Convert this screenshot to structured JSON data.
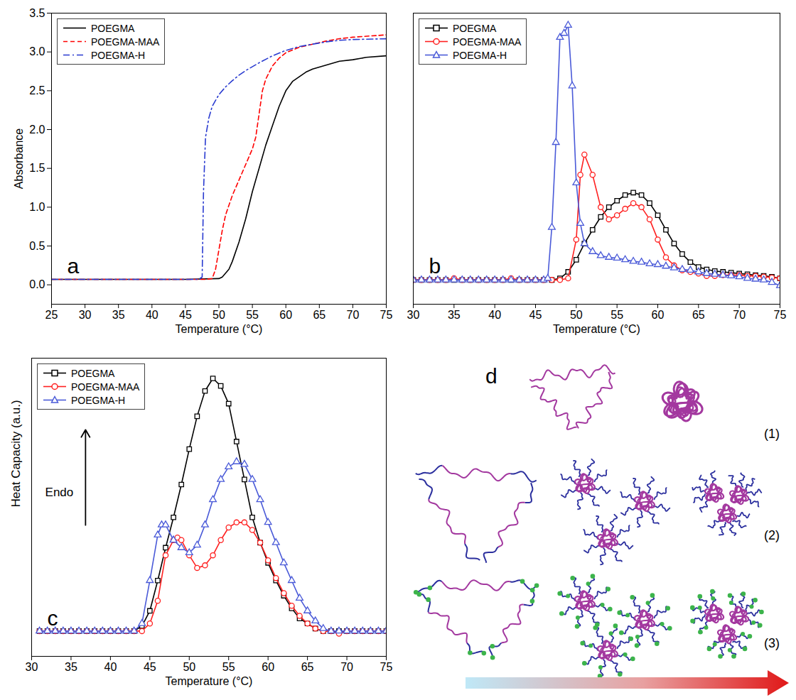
{
  "chart_data": [
    {
      "type": "line",
      "annotations": [
        "a"
      ],
      "x_label": "Temperature (°C)",
      "y_label": "Absorbance",
      "xlim": [
        25,
        75
      ],
      "xticks": [
        25,
        30,
        35,
        40,
        45,
        50,
        55,
        60,
        65,
        70,
        75
      ],
      "ylim": [
        -0.25,
        3.5
      ],
      "yticks": [
        {
          "value": 0,
          "label": "0.0"
        },
        0.5,
        {
          "value": 1,
          "label": "1.0"
        },
        1.5,
        {
          "value": 2,
          "label": "2.0"
        },
        2.5,
        {
          "value": 3,
          "label": "3.0"
        },
        3.5
      ],
      "legend": "top-left",
      "series": [
        {
          "name": "POEGMA",
          "color": "#000000",
          "line_style": "solid",
          "x": [
            25,
            30,
            35,
            40,
            45,
            50,
            50.5,
            51,
            51.5,
            52,
            53,
            54,
            55,
            56,
            57,
            58,
            59,
            60,
            61,
            62,
            63,
            64,
            66,
            68,
            70,
            72,
            75
          ],
          "values": [
            0.07,
            0.07,
            0.07,
            0.07,
            0.07,
            0.08,
            0.1,
            0.15,
            0.2,
            0.3,
            0.55,
            0.85,
            1.2,
            1.5,
            1.8,
            2.05,
            2.3,
            2.5,
            2.62,
            2.68,
            2.74,
            2.78,
            2.83,
            2.88,
            2.9,
            2.93,
            2.95
          ]
        },
        {
          "name": "POEGMA-MAA",
          "color": "#ff0000",
          "line_style": "dashed",
          "x": [
            25,
            30,
            35,
            40,
            45,
            48,
            49,
            49.5,
            50,
            50.5,
            51,
            52,
            53,
            54,
            55,
            55.5,
            56,
            56.5,
            57,
            58,
            59,
            60,
            62,
            64,
            66,
            68,
            70,
            75
          ],
          "values": [
            0.07,
            0.07,
            0.07,
            0.07,
            0.07,
            0.07,
            0.08,
            0.2,
            0.45,
            0.7,
            0.9,
            1.15,
            1.35,
            1.55,
            1.75,
            1.9,
            2.2,
            2.5,
            2.65,
            2.82,
            2.92,
            2.99,
            3.06,
            3.1,
            3.14,
            3.17,
            3.19,
            3.22
          ]
        },
        {
          "name": "POEGMA-H",
          "color": "#2a3bd0",
          "line_style": "dashdot",
          "x": [
            25,
            30,
            35,
            40,
            45,
            47,
            47.5,
            47.7,
            48,
            48.5,
            49,
            50,
            51,
            52,
            53,
            54,
            56,
            58,
            60,
            62,
            64,
            66,
            68,
            70,
            75
          ],
          "values": [
            0.07,
            0.07,
            0.07,
            0.07,
            0.07,
            0.07,
            0.1,
            1.2,
            1.9,
            2.15,
            2.3,
            2.45,
            2.55,
            2.63,
            2.7,
            2.76,
            2.86,
            2.95,
            3.02,
            3.07,
            3.1,
            3.13,
            3.15,
            3.16,
            3.17
          ]
        }
      ]
    },
    {
      "type": "line",
      "annotations": [
        "b"
      ],
      "x_label": "Temperature (°C)",
      "xlim": [
        30,
        75
      ],
      "xticks": [
        30,
        35,
        40,
        45,
        50,
        55,
        60,
        65,
        70,
        75
      ],
      "ylim": [
        -0.2,
        3.4
      ],
      "tick_labels": "x",
      "legend": "top-left",
      "series": [
        {
          "name": "POEGMA",
          "color": "#000000",
          "line_style": "solid",
          "marker": "square",
          "x": [
            30,
            31,
            32,
            33,
            34,
            35,
            36,
            37,
            38,
            39,
            40,
            41,
            42,
            43,
            44,
            45,
            46,
            47,
            48,
            49,
            50,
            51,
            52,
            53,
            54,
            55,
            56,
            57,
            58,
            59,
            60,
            61,
            62,
            63,
            64,
            65,
            66,
            67,
            68,
            69,
            70,
            71,
            72,
            73,
            74,
            75
          ],
          "values": [
            0.1,
            0.1,
            0.1,
            0.1,
            0.1,
            0.1,
            0.1,
            0.1,
            0.1,
            0.1,
            0.1,
            0.1,
            0.1,
            0.1,
            0.1,
            0.1,
            0.1,
            0.1,
            0.12,
            0.2,
            0.35,
            0.55,
            0.72,
            0.88,
            1.0,
            1.08,
            1.15,
            1.18,
            1.15,
            1.05,
            0.9,
            0.72,
            0.55,
            0.42,
            0.32,
            0.26,
            0.23,
            0.21,
            0.2,
            0.19,
            0.18,
            0.17,
            0.16,
            0.15,
            0.14,
            0.12
          ]
        },
        {
          "name": "POEGMA-MAA",
          "color": "#ff2020",
          "line_style": "solid",
          "marker": "circle",
          "x": [
            30,
            31,
            32,
            33,
            34,
            35,
            36,
            37,
            38,
            39,
            40,
            41,
            42,
            43,
            44,
            45,
            46,
            47,
            48,
            49,
            50,
            50.5,
            51,
            52,
            53,
            54,
            55,
            56,
            57,
            58,
            59,
            60,
            61,
            62,
            63,
            64,
            65,
            66,
            67,
            68,
            69,
            70,
            71,
            72,
            73,
            74,
            75
          ],
          "values": [
            0.1,
            0.1,
            0.1,
            0.1,
            0.1,
            0.12,
            0.1,
            0.1,
            0.1,
            0.1,
            0.1,
            0.1,
            0.12,
            0.1,
            0.1,
            0.1,
            0.1,
            0.1,
            0.1,
            0.12,
            0.6,
            1.4,
            1.65,
            1.4,
            1.0,
            0.85,
            0.9,
            0.98,
            1.05,
            1.0,
            0.85,
            0.6,
            0.38,
            0.28,
            0.22,
            0.2,
            0.18,
            0.15,
            0.15,
            0.16,
            0.16,
            0.16,
            0.15,
            0.15,
            0.14,
            0.13,
            0.12
          ]
        },
        {
          "name": "POEGMA-H",
          "color": "#4a5ad8",
          "line_style": "solid",
          "marker": "triangle",
          "x": [
            30,
            31,
            32,
            33,
            34,
            35,
            36,
            37,
            38,
            39,
            40,
            41,
            42,
            43,
            44,
            45,
            46,
            46.5,
            47,
            47.5,
            48,
            48.5,
            49,
            49.5,
            50,
            50.5,
            51,
            52,
            53,
            54,
            55,
            56,
            57,
            58,
            59,
            60,
            61,
            62,
            63,
            64,
            65,
            66,
            67,
            68,
            69,
            70,
            71,
            72,
            73,
            74,
            75
          ],
          "values": [
            0.1,
            0.1,
            0.1,
            0.1,
            0.1,
            0.1,
            0.1,
            0.1,
            0.1,
            0.1,
            0.1,
            0.1,
            0.1,
            0.1,
            0.1,
            0.1,
            0.1,
            0.12,
            0.75,
            1.8,
            3.1,
            3.15,
            3.25,
            2.5,
            1.3,
            0.8,
            0.55,
            0.45,
            0.4,
            0.38,
            0.37,
            0.35,
            0.33,
            0.32,
            0.3,
            0.29,
            0.27,
            0.25,
            0.23,
            0.22,
            0.2,
            0.18,
            0.17,
            0.16,
            0.15,
            0.14,
            0.12,
            0.11,
            0.1,
            0.07,
            0.03
          ]
        }
      ]
    },
    {
      "type": "line",
      "annotations": [
        "c",
        "Endo"
      ],
      "x_label": "Temperature (°C)",
      "y_label": "Heat Capacity (a.u.)",
      "xlim": [
        30,
        75
      ],
      "xticks": [
        30,
        35,
        40,
        45,
        50,
        55,
        60,
        65,
        70,
        75
      ],
      "ylim": [
        -0.1,
        1.08
      ],
      "tick_labels": "x",
      "legend": "top-left",
      "series": [
        {
          "name": "POEGMA",
          "color": "#000000",
          "line_style": "solid",
          "marker": "square",
          "x": [
            31,
            32,
            33,
            34,
            35,
            36,
            37,
            38,
            39,
            40,
            41,
            42,
            43,
            44,
            45,
            46,
            47,
            48,
            49,
            50,
            51,
            52,
            53,
            54,
            55,
            56,
            57,
            58,
            59,
            60,
            61,
            62,
            63,
            64,
            65,
            66,
            67,
            68,
            69,
            70,
            71,
            72,
            73,
            74,
            75
          ],
          "values": [
            0,
            0,
            0,
            0,
            0,
            0,
            0,
            0,
            0,
            0,
            0,
            0,
            0,
            0.02,
            0.08,
            0.2,
            0.33,
            0.45,
            0.58,
            0.72,
            0.85,
            0.95,
            1.0,
            0.97,
            0.9,
            0.75,
            0.6,
            0.45,
            0.35,
            0.27,
            0.2,
            0.14,
            0.09,
            0.05,
            0.03,
            0.01,
            0,
            0,
            0,
            0,
            0,
            0,
            0,
            0,
            0
          ]
        },
        {
          "name": "POEGMA-MAA",
          "color": "#ff2020",
          "line_style": "solid",
          "marker": "circle",
          "x": [
            31,
            32,
            33,
            34,
            35,
            36,
            37,
            38,
            39,
            40,
            41,
            42,
            43,
            44,
            45,
            46,
            47,
            48,
            48.5,
            49,
            50,
            51,
            52,
            53,
            54,
            55,
            56,
            57,
            58,
            59,
            60,
            61,
            62,
            63,
            64,
            65,
            66,
            67,
            68,
            69,
            70,
            71,
            72,
            73,
            74,
            75
          ],
          "values": [
            0,
            0,
            0,
            0,
            0,
            0,
            0,
            0,
            0,
            0,
            0,
            0,
            0,
            0,
            0.03,
            0.12,
            0.3,
            0.36,
            0.37,
            0.36,
            0.3,
            0.25,
            0.26,
            0.3,
            0.36,
            0.41,
            0.43,
            0.43,
            0.4,
            0.35,
            0.28,
            0.21,
            0.15,
            0.1,
            0.06,
            0.03,
            0.01,
            0,
            0,
            -0.01,
            0,
            0,
            0,
            0,
            0,
            0
          ]
        },
        {
          "name": "POEGMA-H",
          "color": "#4a5ad8",
          "line_style": "solid",
          "marker": "triangle",
          "x": [
            31,
            32,
            33,
            34,
            35,
            36,
            37,
            38,
            39,
            40,
            41,
            42,
            43,
            44,
            45,
            46,
            46.5,
            47,
            48,
            49,
            50,
            51,
            52,
            53,
            54,
            55,
            56,
            57,
            58,
            59,
            60,
            61,
            62,
            63,
            64,
            65,
            66,
            67,
            68,
            69,
            70,
            71,
            72,
            73,
            74,
            75
          ],
          "values": [
            0,
            0,
            0,
            0,
            0,
            0,
            0,
            0,
            0,
            0,
            0,
            0,
            0,
            0.03,
            0.2,
            0.38,
            0.42,
            0.42,
            0.36,
            0.33,
            0.31,
            0.34,
            0.42,
            0.52,
            0.6,
            0.65,
            0.67,
            0.66,
            0.6,
            0.52,
            0.43,
            0.35,
            0.27,
            0.2,
            0.13,
            0.08,
            0.04,
            0.01,
            0,
            0,
            0,
            0,
            0,
            0,
            0,
            0
          ]
        }
      ]
    }
  ],
  "diagram": {
    "label": "d",
    "rows": [
      "(1)",
      "(2)",
      "(3)"
    ]
  }
}
